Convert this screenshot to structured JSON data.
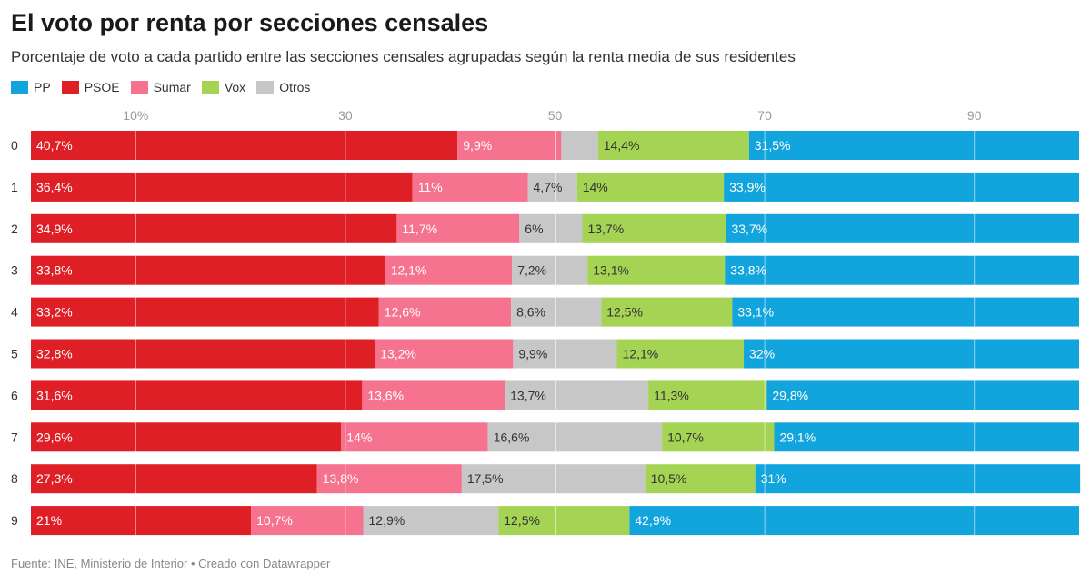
{
  "title": "El voto por renta por secciones censales",
  "subtitle": "Porcentaje de voto a cada partido entre las secciones censales agrupadas según la renta media de sus residentes",
  "footer": "Fuente: INE, Ministerio de Interior • Creado con Datawrapper",
  "legend": [
    {
      "name": "PP",
      "color": "#11a4dd"
    },
    {
      "name": "PSOE",
      "color": "#df1f26"
    },
    {
      "name": "Sumar",
      "color": "#f5738f"
    },
    {
      "name": "Vox",
      "color": "#a5d353"
    },
    {
      "name": "Otros",
      "color": "#c7c7c7"
    }
  ],
  "chart_data": {
    "type": "bar",
    "orientation": "horizontal",
    "stacked": true,
    "categories": [
      "0",
      "1",
      "2",
      "3",
      "4",
      "5",
      "6",
      "7",
      "8",
      "9"
    ],
    "x_ticks": [
      {
        "value": 10,
        "label": "10%"
      },
      {
        "value": 30,
        "label": "30"
      },
      {
        "value": 50,
        "label": "50"
      },
      {
        "value": 70,
        "label": "70"
      },
      {
        "value": 90,
        "label": "90"
      }
    ],
    "xlim": [
      0,
      100
    ],
    "grid": true,
    "series": [
      {
        "name": "PSOE",
        "color": "#df1f26",
        "values": [
          40.7,
          36.4,
          34.9,
          33.8,
          33.2,
          32.8,
          31.6,
          29.6,
          27.3,
          21
        ],
        "labels": [
          "40,7%",
          "36,4%",
          "34,9%",
          "33,8%",
          "33,2%",
          "32,8%",
          "31,6%",
          "29,6%",
          "27,3%",
          "21%"
        ]
      },
      {
        "name": "Sumar",
        "color": "#f5738f",
        "values": [
          9.9,
          11,
          11.7,
          12.1,
          12.6,
          13.2,
          13.6,
          14,
          13.8,
          10.7
        ],
        "labels": [
          "9,9%",
          "11%",
          "11,7%",
          "12,1%",
          "12,6%",
          "13,2%",
          "13,6%",
          "14%",
          "13,8%",
          "10,7%"
        ]
      },
      {
        "name": "Otros",
        "color": "#c7c7c7",
        "values": [
          3.5,
          4.7,
          6,
          7.2,
          8.6,
          9.9,
          13.7,
          16.6,
          17.5,
          12.9
        ],
        "labels": [
          "",
          "4,7%",
          "6%",
          "7,2%",
          "8,6%",
          "9,9%",
          "13,7%",
          "16,6%",
          "17,5%",
          "12,9%"
        ]
      },
      {
        "name": "Vox",
        "color": "#a5d353",
        "values": [
          14.4,
          14,
          13.7,
          13.1,
          12.5,
          12.1,
          11.3,
          10.7,
          10.5,
          12.5
        ],
        "labels": [
          "14,4%",
          "14%",
          "13,7%",
          "13,1%",
          "12,5%",
          "12,1%",
          "11,3%",
          "10,7%",
          "10,5%",
          "12,5%"
        ]
      },
      {
        "name": "PP",
        "color": "#11a4dd",
        "values": [
          31.5,
          33.9,
          33.7,
          33.8,
          33.1,
          32,
          29.8,
          29.1,
          31,
          42.9
        ],
        "labels": [
          "31,5%",
          "33,9%",
          "33,7%",
          "33,8%",
          "33,1%",
          "32%",
          "29,8%",
          "29,1%",
          "31%",
          "42,9%"
        ]
      }
    ]
  }
}
